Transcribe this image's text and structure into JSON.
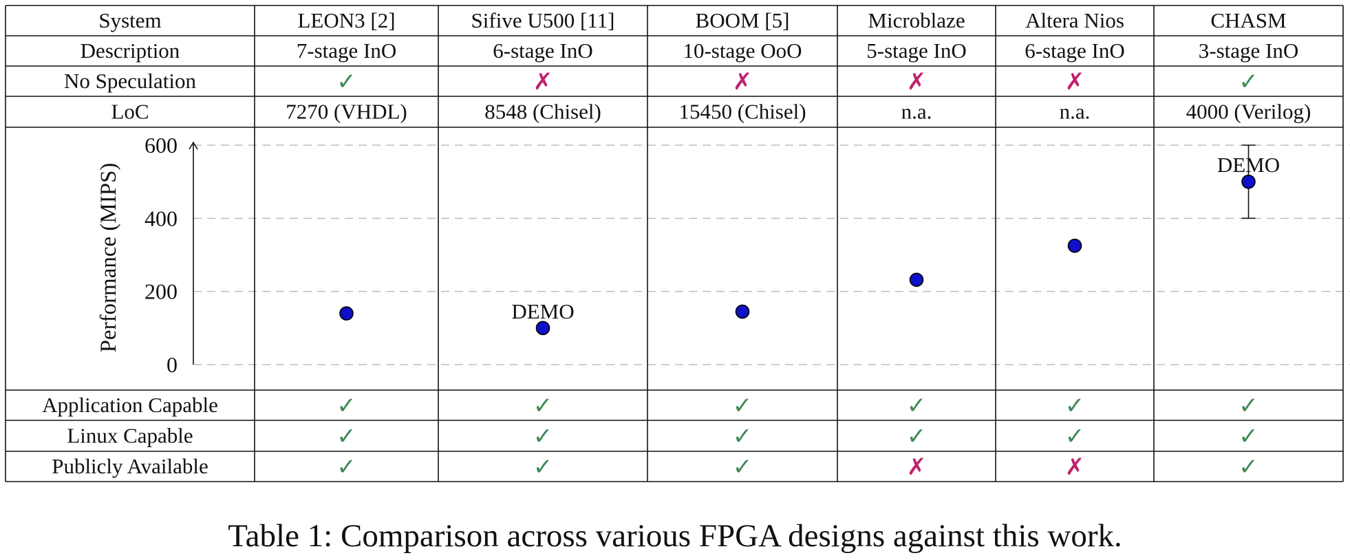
{
  "table": {
    "header_row_label": "System",
    "systems": [
      "LEON3 [2]",
      "Sifive U500 [11]",
      "BOOM [5]",
      "Microblaze",
      "Altera Nios",
      "CHASM"
    ],
    "rows_top": [
      {
        "label": "Description",
        "kind": "text",
        "values": [
          "7-stage InO",
          "6-stage InO",
          "10-stage OoO",
          "5-stage InO",
          "6-stage InO",
          "3-stage InO"
        ]
      },
      {
        "label": "No Speculation",
        "kind": "mark",
        "values": [
          true,
          false,
          false,
          false,
          false,
          true
        ]
      },
      {
        "label": "LoC",
        "kind": "text",
        "values": [
          "7270 (VHDL)",
          "8548 (Chisel)",
          "15450 (Chisel)",
          "n.a.",
          "n.a.",
          "4000 (Verilog)"
        ]
      }
    ],
    "rows_bottom": [
      {
        "label": "Application Capable",
        "kind": "mark",
        "values": [
          true,
          true,
          true,
          true,
          true,
          true
        ]
      },
      {
        "label": "Linux Capable",
        "kind": "mark",
        "values": [
          true,
          true,
          true,
          true,
          true,
          true
        ]
      },
      {
        "label": "Publicly Available",
        "kind": "mark",
        "values": [
          true,
          true,
          true,
          false,
          false,
          true
        ]
      }
    ],
    "check_glyph": "✓",
    "cross_glyph": "✗"
  },
  "chart_data": {
    "type": "scatter",
    "ylabel": "Performance (MIPS)",
    "ylim": [
      0,
      600
    ],
    "yticks": [
      0,
      200,
      400,
      600
    ],
    "grid": "dashed horizontal",
    "categories": [
      "LEON3 [2]",
      "Sifive U500 [11]",
      "BOOM [5]",
      "Microblaze",
      "Altera Nios",
      "CHASM"
    ],
    "values": [
      140,
      100,
      145,
      232,
      325,
      500
    ],
    "error_bars": [
      null,
      null,
      null,
      null,
      null,
      [
        400,
        600
      ]
    ],
    "annotations": [
      {
        "category": "Sifive U500 [11]",
        "text": "DEMO"
      },
      {
        "category": "CHASM",
        "text": "DEMO"
      }
    ],
    "marker_color": "#1010c8"
  },
  "caption": "Table 1: Comparison across various FPGA designs against this work.",
  "colors": {
    "check": "#3f8a55",
    "cross": "#c0226e",
    "grid": "#bdbdbd",
    "marker": "#1010c8"
  }
}
